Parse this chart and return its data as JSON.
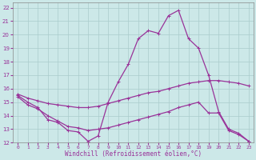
{
  "title": "",
  "xlabel": "Windchill (Refroidissement éolien,°C)",
  "ylabel": "",
  "xlim": [
    -0.5,
    23.5
  ],
  "ylim": [
    12,
    22.4
  ],
  "xticks": [
    0,
    1,
    2,
    3,
    4,
    5,
    6,
    7,
    8,
    9,
    10,
    11,
    12,
    13,
    14,
    15,
    16,
    17,
    18,
    19,
    20,
    21,
    22,
    23
  ],
  "yticks": [
    12,
    13,
    14,
    15,
    16,
    17,
    18,
    19,
    20,
    21,
    22
  ],
  "bg_color": "#cce8e8",
  "grid_color": "#aacccc",
  "line_color": "#993399",
  "line_width": 0.9,
  "marker": "+",
  "marker_size": 3.5,
  "curves": [
    {
      "x": [
        0,
        1,
        2,
        3,
        4,
        5,
        6,
        7,
        8,
        9,
        10,
        11,
        12,
        13,
        14,
        15,
        16,
        17,
        18,
        19,
        20,
        21,
        22,
        23
      ],
      "y": [
        15.5,
        15.0,
        14.6,
        13.7,
        13.5,
        12.9,
        12.8,
        12.1,
        12.5,
        15.0,
        16.5,
        17.8,
        19.7,
        20.3,
        20.1,
        21.4,
        21.8,
        19.7,
        19.0,
        17.0,
        14.3,
        13.0,
        12.7,
        12.1
      ]
    },
    {
      "x": [
        0,
        1,
        2,
        3,
        4,
        5,
        6,
        7,
        8,
        9,
        10,
        11,
        12,
        13,
        14,
        15,
        16,
        17,
        18,
        19,
        20,
        21,
        22,
        23
      ],
      "y": [
        15.4,
        14.8,
        14.5,
        14.0,
        13.6,
        13.2,
        13.1,
        12.9,
        13.0,
        13.1,
        13.3,
        13.5,
        13.7,
        13.9,
        14.1,
        14.3,
        14.6,
        14.8,
        15.0,
        14.2,
        14.2,
        12.9,
        12.6,
        12.1
      ]
    },
    {
      "x": [
        0,
        1,
        2,
        3,
        4,
        5,
        6,
        7,
        8,
        9,
        10,
        11,
        12,
        13,
        14,
        15,
        16,
        17,
        18,
        19,
        20,
        21,
        22,
        23
      ],
      "y": [
        15.6,
        15.3,
        15.1,
        14.9,
        14.8,
        14.7,
        14.6,
        14.6,
        14.7,
        14.9,
        15.1,
        15.3,
        15.5,
        15.7,
        15.8,
        16.0,
        16.2,
        16.4,
        16.5,
        16.6,
        16.6,
        16.5,
        16.4,
        16.2
      ]
    }
  ]
}
